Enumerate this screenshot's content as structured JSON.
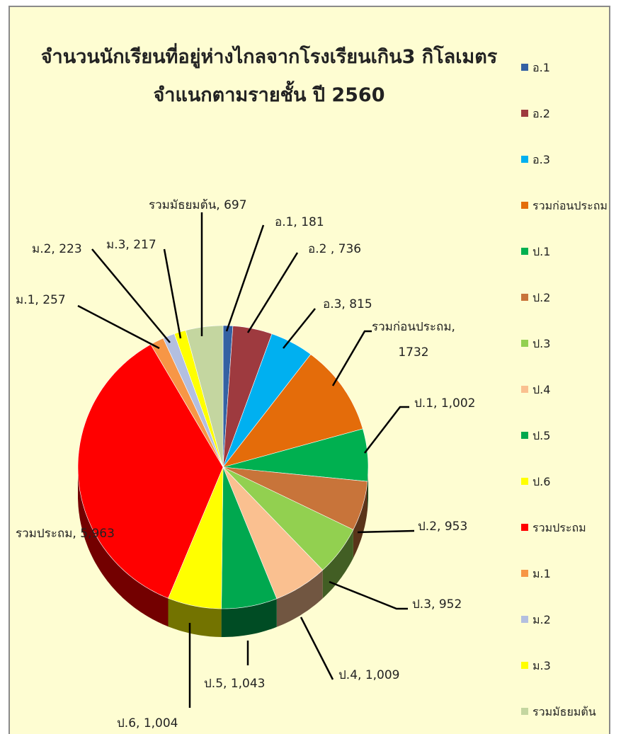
{
  "chart_data": {
    "type": "pie",
    "title": [
      "จำนวนนักเรียนที่อยู่ห่างไกลจากโรงเรียนเกิน3  กิโลเมตร",
      "จำแนกตามรายชั้น ปี 2560"
    ],
    "categories": [
      "อ.1",
      "อ.2",
      "อ.3",
      "รวมก่อนประถม",
      "ป.1",
      "ป.2",
      "ป.3",
      "ป.4",
      "ป.5",
      "ป.6",
      "รวมประถม",
      "ม.1",
      "ม.2",
      "ม.3",
      "รวมมัธยมต้น"
    ],
    "values": [
      181,
      736,
      815,
      1732,
      1002,
      953,
      952,
      1009,
      1043,
      1004,
      5963,
      257,
      223,
      217,
      697
    ],
    "value_labels": [
      "อ.1, 181",
      "อ.2 , 736",
      "อ.3, 815",
      "รวมก่อนประถม,\n1732",
      "ป.1, 1,002",
      "ป.2, 953",
      "ป.3, 952",
      "ป.4, 1,009",
      "ป.5, 1,043",
      "ป.6, 1,004",
      "รวมประถม, 5,963",
      "ม.1, 257",
      "ม.2, 223",
      "ม.3, 217",
      "รวมมัธยมต้น, 697"
    ],
    "colors": [
      "#3461a3",
      "#9e3a3f",
      "#00b0f0",
      "#e46c0a",
      "#00b050",
      "#c8743a",
      "#92d050",
      "#fac090",
      "#00a84f",
      "#ffff00",
      "#ff0000",
      "#f79646",
      "#b3bfe0",
      "#ffff00",
      "#c4d6a0"
    ],
    "legend": "right"
  }
}
